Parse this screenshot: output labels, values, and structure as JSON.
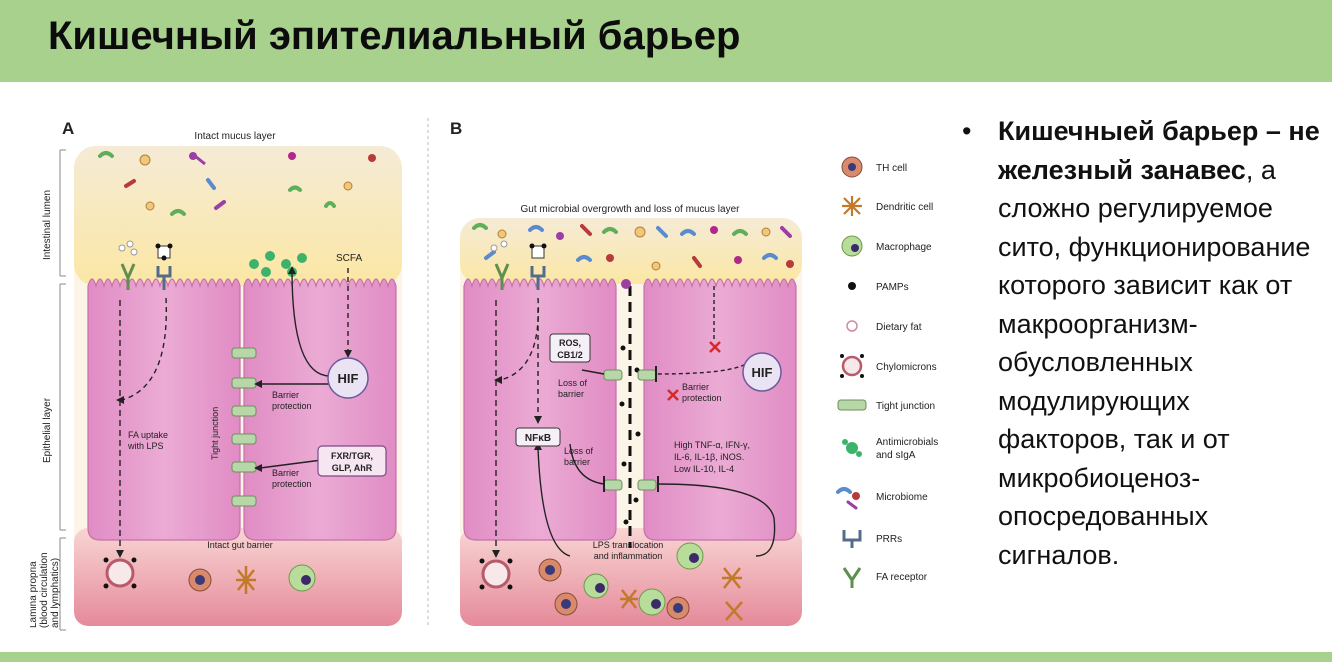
{
  "slide": {
    "title": "Кишечный эпителиальный барьер"
  },
  "figure": {
    "panel_a": {
      "letter": "A",
      "mucus_label": "Intact mucus layer",
      "zone_lumen": "Intestinal lumen",
      "zone_epithelial": "Epithelial layer",
      "zone_lamina_1": "Lamina propria",
      "zone_lamina_2": "(blood circulation",
      "zone_lamina_3": "and lymphatics)",
      "scfa": "SCFA",
      "hif": "HIF",
      "barrier_1_line1": "Barrier",
      "barrier_1_line2": "protection",
      "tight_junction": "Tight junction",
      "fa_uptake_1": "FA uptake",
      "fa_uptake_2": "with LPS",
      "fxr_1": "FXR/TGR,",
      "fxr_2": "GLP, AhR",
      "barrier_2_line1": "Barrier",
      "barrier_2_line2": "protection",
      "intact_barrier": "Intact gut barrier"
    },
    "panel_b": {
      "letter": "B",
      "overgrowth_label": "Gut microbial overgrowth and loss of mucus layer",
      "ros_1": "ROS,",
      "ros_2": "CB1/2",
      "loss_1_line1": "Loss of",
      "loss_1_line2": "barrier",
      "nfkb": "NFκB",
      "loss_2_line1": "Loss of",
      "loss_2_line2": "barrier",
      "hif": "HIF",
      "barrier_line1": "Barrier",
      "barrier_line2": "protection",
      "cyto_1": "High TNF-α, IFN-γ,",
      "cyto_2": "IL-6, IL-1β, iNOS.",
      "cyto_3": "Low IL-10, IL-4",
      "lps_1": "LPS translocation",
      "lps_2": "and inflammation"
    },
    "legend": [
      {
        "label": "TH cell",
        "icon": "th-cell-icon"
      },
      {
        "label": "Dendritic cell",
        "icon": "dendritic-cell-icon"
      },
      {
        "label": "Macrophage",
        "icon": "macrophage-icon"
      },
      {
        "label": "PAMPs",
        "icon": "pamps-icon"
      },
      {
        "label": "Dietary fat",
        "icon": "dietary-fat-icon"
      },
      {
        "label": "Chylomicrons",
        "icon": "chylomicron-icon"
      },
      {
        "label": "Tight junction",
        "icon": "tight-junction-icon"
      },
      {
        "label": "Antimicrobials",
        "label2": "and sIgA",
        "icon": "antimicrobials-icon"
      },
      {
        "label": "Microbiome",
        "icon": "microbiome-icon"
      },
      {
        "label": "PRRs",
        "icon": "prr-icon"
      },
      {
        "label": "FA receptor",
        "icon": "fa-receptor-icon"
      }
    ]
  },
  "bullets": [
    {
      "bold_part": "Кишечныей барьер – не железный занавес",
      "rest_part": ", а сложно регулируемое сито, функционирование которого зависит как от макроорганизм-обусловленных модулирующих факторов, так и от микробиоценоз-опосредованных сигналов."
    }
  ],
  "colors": {
    "title_bar": "#a9d18e",
    "mucus": "#fbeec3",
    "epithelium": "#e7a2cf",
    "lamina": "#f2b3bd",
    "hif_fill": "#e9e3f3",
    "antimicrobial": "#3cb36b"
  }
}
